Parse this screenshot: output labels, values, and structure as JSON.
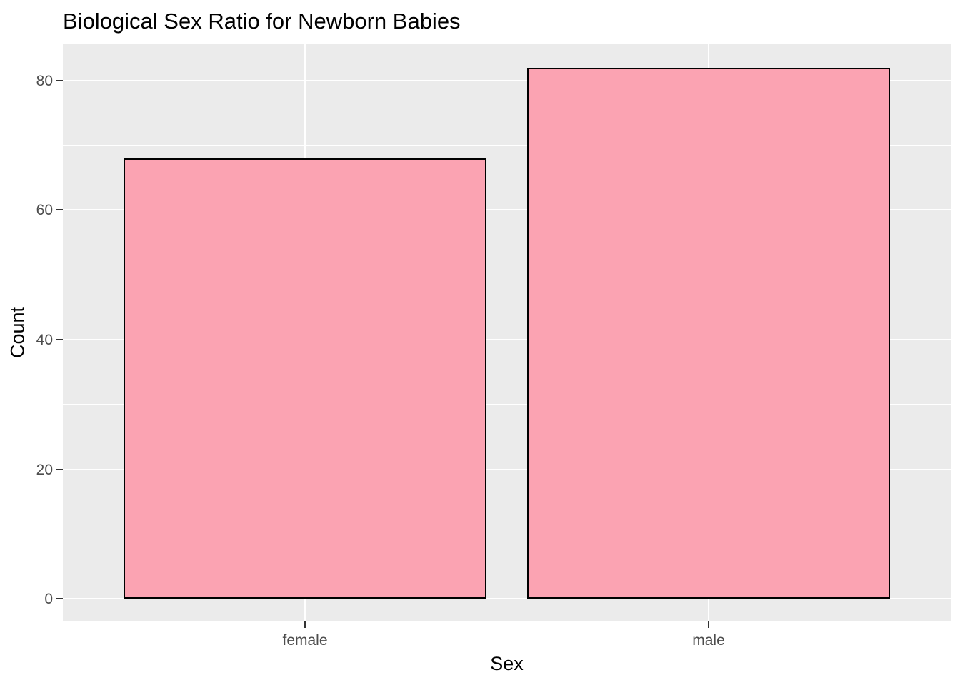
{
  "chart_data": {
    "type": "bar",
    "title": "Biological Sex Ratio for Newborn Babies",
    "xlabel": "Sex",
    "ylabel": "Count",
    "categories": [
      "female",
      "male"
    ],
    "values": [
      68,
      82
    ],
    "y_ticks": [
      0,
      20,
      40,
      60,
      80
    ],
    "y_minor_ticks": [
      10,
      30,
      50,
      70
    ],
    "ylim": [
      -3.5,
      85.6
    ],
    "grid": true,
    "legend_position": "none"
  },
  "colors": {
    "bar_fill": "#FBA3B2",
    "bar_stroke": "#000000",
    "panel_background": "#EBEBEB",
    "grid": "#FFFFFF",
    "tick_mark": "#333333",
    "tick_label": "#4D4D4D",
    "text": "#000000",
    "background": "#FFFFFF"
  }
}
